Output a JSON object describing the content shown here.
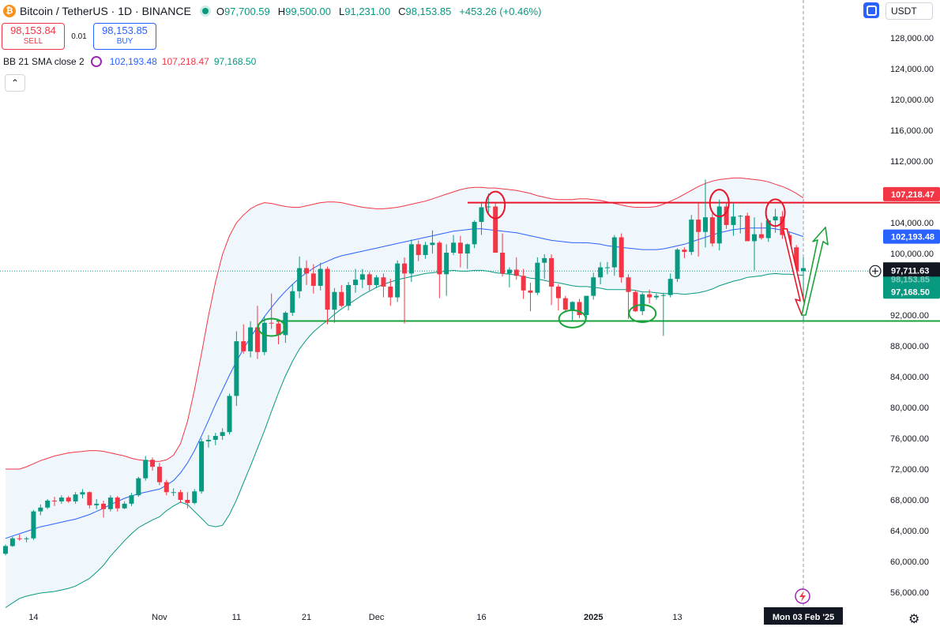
{
  "header": {
    "symbol": "Bitcoin / TetherUS · 1D · BINANCE",
    "open_label": "O",
    "open": "97,700.59",
    "high_label": "H",
    "high": "99,500.00",
    "low_label": "L",
    "low": "91,231.00",
    "close_label": "C",
    "close": "98,153.85",
    "change": "+453.26 (+0.46%)",
    "coin_glyph": "₿"
  },
  "trade": {
    "sell_price": "98,153.84",
    "sell_label": "SELL",
    "spread": "0.01",
    "buy_price": "98,153.85",
    "buy_label": "BUY"
  },
  "indicator": {
    "name": "BB 21 SMA close 2",
    "basis": "102,193.48",
    "upper": "107,218.47",
    "lower": "97,168.50"
  },
  "toolbar": {
    "currency": "USDT",
    "collapse_glyph": "⌃",
    "settings_glyph": "⚙"
  },
  "colors": {
    "up": "#089981",
    "down": "#f23645",
    "basis": "#2962ff",
    "upper": "#f23645",
    "lower": "#089981",
    "fill": "#eaf3fb",
    "support": "#1aa33a",
    "resistance": "#e8162a"
  },
  "chart_data": {
    "type": "candlestick",
    "symbol": "Bitcoin / TetherUS",
    "interval": "1D",
    "ylim": [
      54000,
      131000
    ],
    "yticks": [
      128000,
      124000,
      120000,
      116000,
      112000,
      108000,
      104000,
      100000,
      92000,
      88000,
      84000,
      80000,
      76000,
      72000,
      68000,
      64000,
      60000,
      56000
    ],
    "ytick_labels": [
      "128,000.00",
      "124,000.00",
      "120,000.00",
      "116,000.00",
      "112,000.00",
      "108,000.00",
      "104,000.00",
      "100,000.00",
      "92,000.00",
      "88,000.00",
      "84,000.00",
      "80,000.00",
      "76,000.00",
      "72,000.00",
      "68,000.00",
      "64,000.00",
      "60,000.00",
      "56,000.00"
    ],
    "xtick_labels": [
      {
        "i": 4,
        "label": "14"
      },
      {
        "i": 22,
        "label": "Nov"
      },
      {
        "i": 33,
        "label": "11"
      },
      {
        "i": 43,
        "label": "21"
      },
      {
        "i": 53,
        "label": "Dec"
      },
      {
        "i": 68,
        "label": "16"
      },
      {
        "i": 84,
        "label": "2025"
      },
      {
        "i": 96,
        "label": "13"
      }
    ],
    "price_labels": {
      "upper": "107,218.47",
      "basis": "102,193.48",
      "last": "97,711.63",
      "hidden": "98,153.85",
      "lower": "97,168.50",
      "date": "Mon 03 Feb '25"
    },
    "support": 91231,
    "resistance": 106600,
    "last_price": 97711.63,
    "bollinger_bands": {
      "period": 21,
      "stddev": 2,
      "basis": [
        63000,
        63300,
        63600,
        63900,
        64200,
        64500,
        64700,
        64900,
        65100,
        65300,
        65500,
        65800,
        66100,
        66500,
        66900,
        67400,
        67800,
        68200,
        68500,
        68800,
        69000,
        69200,
        69400,
        69900,
        70500,
        71500,
        72800,
        74400,
        76300,
        78300,
        80400,
        82300,
        84200,
        86000,
        87600,
        89100,
        90500,
        91800,
        93000,
        94100,
        95100,
        96000,
        96800,
        97500,
        98100,
        98600,
        99000,
        99400,
        99700,
        99900,
        100100,
        100300,
        100500,
        100700,
        100900,
        101100,
        101300,
        101500,
        101700,
        101900,
        102100,
        102300,
        102500,
        102700,
        102900,
        103000,
        103100,
        103200,
        103200,
        103100,
        103000,
        102900,
        102800,
        102700,
        102500,
        102300,
        102100,
        101900,
        101700,
        101600,
        101500,
        101400,
        101400,
        101400,
        101300,
        101200,
        101000,
        100900,
        100800,
        100700,
        100600,
        100500,
        100500,
        100500,
        100600,
        100800,
        101000,
        101200,
        101500,
        101800,
        102100,
        102400,
        102700,
        102900,
        103100,
        103200,
        103300,
        103300,
        103300,
        103300,
        103200,
        103000,
        102800,
        102500,
        102193
      ],
      "upper": [
        72000,
        72000,
        72000,
        72300,
        72700,
        73100,
        73400,
        73700,
        73900,
        74100,
        74200,
        74300,
        74400,
        74400,
        74300,
        74100,
        73900,
        73700,
        73400,
        73200,
        73100,
        73000,
        73000,
        73200,
        73800,
        75300,
        78200,
        82300,
        87000,
        91900,
        96300,
        99900,
        102300,
        104000,
        105000,
        105800,
        106300,
        106600,
        106500,
        106300,
        106100,
        106000,
        106000,
        106200,
        106400,
        106600,
        106700,
        106700,
        106600,
        106400,
        106200,
        106000,
        105900,
        105800,
        105800,
        105900,
        106000,
        106200,
        106400,
        106600,
        106800,
        107100,
        107400,
        107700,
        108000,
        108300,
        108500,
        108600,
        108600,
        108500,
        108500,
        108400,
        108300,
        108200,
        108000,
        107800,
        107500,
        107300,
        107100,
        107000,
        107000,
        107000,
        107100,
        107100,
        107000,
        106900,
        106700,
        106500,
        106300,
        106100,
        106000,
        106000,
        106000,
        106100,
        106400,
        106800,
        107200,
        107700,
        108200,
        108700,
        109100,
        109400,
        109600,
        109700,
        109800,
        109800,
        109700,
        109600,
        109500,
        109300,
        109000,
        108700,
        108300,
        107800,
        107218
      ],
      "lower": [
        54000,
        54600,
        55200,
        55500,
        55700,
        55900,
        56000,
        56100,
        56300,
        56500,
        56800,
        57300,
        57800,
        58600,
        59500,
        60700,
        61700,
        62700,
        63600,
        64400,
        64900,
        65400,
        65800,
        66600,
        67200,
        67700,
        67400,
        66500,
        65600,
        64700,
        64500,
        64700,
        66100,
        68000,
        70200,
        72400,
        74700,
        77000,
        79500,
        81900,
        84100,
        86000,
        87600,
        88800,
        89800,
        90600,
        91300,
        92100,
        92800,
        93400,
        94000,
        94600,
        95100,
        95600,
        96000,
        96300,
        96600,
        96800,
        97000,
        97200,
        97400,
        97500,
        97600,
        97700,
        97800,
        97700,
        97700,
        97800,
        97800,
        97700,
        97500,
        97400,
        97300,
        97200,
        97000,
        96800,
        96700,
        96500,
        96300,
        96200,
        96000,
        95800,
        95700,
        95700,
        95600,
        95500,
        95300,
        95300,
        95300,
        95300,
        95200,
        95000,
        95000,
        94900,
        94800,
        94800,
        94800,
        94700,
        94800,
        94900,
        95100,
        95400,
        95800,
        96100,
        96400,
        96600,
        96900,
        97000,
        97100,
        97300,
        97400,
        97300,
        97300,
        97200,
        97168
      ]
    },
    "candles_ohlc": [
      [
        61000,
        62200,
        60800,
        62000
      ],
      [
        62000,
        63200,
        61900,
        63000
      ],
      [
        63000,
        63500,
        62700,
        62900
      ],
      [
        62900,
        63200,
        62500,
        63000
      ],
      [
        63000,
        66700,
        62800,
        66500
      ],
      [
        66500,
        67400,
        66000,
        67000
      ],
      [
        67000,
        68100,
        66800,
        67900
      ],
      [
        67900,
        68400,
        67200,
        67800
      ],
      [
        67800,
        68600,
        67500,
        68300
      ],
      [
        68300,
        68500,
        67600,
        67800
      ],
      [
        67800,
        69000,
        67500,
        68700
      ],
      [
        68700,
        69400,
        68200,
        69000
      ],
      [
        69000,
        69100,
        66900,
        67300
      ],
      [
        67300,
        68100,
        66800,
        67500
      ],
      [
        67500,
        67900,
        65700,
        66800
      ],
      [
        66800,
        68600,
        66500,
        68300
      ],
      [
        68300,
        68500,
        66500,
        66900
      ],
      [
        66900,
        67800,
        66800,
        67500
      ],
      [
        67500,
        68900,
        67200,
        68600
      ],
      [
        68600,
        71000,
        68400,
        70800
      ],
      [
        70800,
        73700,
        70500,
        73200
      ],
      [
        73200,
        73500,
        71800,
        72300
      ],
      [
        72300,
        72800,
        69900,
        70300
      ],
      [
        70300,
        70600,
        68600,
        69000
      ],
      [
        69000,
        69500,
        68500,
        69000
      ],
      [
        69000,
        69300,
        67600,
        68000
      ],
      [
        68000,
        69000,
        66900,
        67600
      ],
      [
        67600,
        69400,
        67400,
        69100
      ],
      [
        69100,
        76000,
        68800,
        75600
      ],
      [
        75600,
        76400,
        74800,
        75800
      ],
      [
        75800,
        76700,
        75100,
        76300
      ],
      [
        76300,
        77300,
        75800,
        76800
      ],
      [
        76800,
        81800,
        76500,
        81500
      ],
      [
        81500,
        89900,
        80200,
        88600
      ],
      [
        88600,
        90800,
        87000,
        87300
      ],
      [
        87300,
        91200,
        86500,
        90400
      ],
      [
        90400,
        93200,
        86300,
        87200
      ],
      [
        87200,
        91800,
        86800,
        91000
      ],
      [
        91000,
        94800,
        90200,
        90900
      ],
      [
        90900,
        91200,
        88200,
        89400
      ],
      [
        89400,
        92500,
        88400,
        92300
      ],
      [
        92300,
        96000,
        91900,
        95100
      ],
      [
        95100,
        99600,
        94200,
        98100
      ],
      [
        98100,
        99100,
        95900,
        97400
      ],
      [
        97400,
        98600,
        94800,
        95800
      ],
      [
        95800,
        98800,
        95200,
        98000
      ],
      [
        98000,
        98300,
        90800,
        92700
      ],
      [
        92700,
        95500,
        91000,
        95000
      ],
      [
        95000,
        95900,
        93000,
        93200
      ],
      [
        93200,
        96300,
        92600,
        95900
      ],
      [
        95900,
        98000,
        94900,
        96600
      ],
      [
        96600,
        98000,
        95500,
        97300
      ],
      [
        97300,
        97600,
        95200,
        95900
      ],
      [
        95900,
        97200,
        95500,
        96900
      ],
      [
        96900,
        97400,
        94300,
        95700
      ],
      [
        95700,
        96700,
        93200,
        94300
      ],
      [
        94300,
        99100,
        93700,
        98700
      ],
      [
        98700,
        99500,
        90900,
        97400
      ],
      [
        97400,
        101800,
        96300,
        101200
      ],
      [
        101200,
        101700,
        99000,
        99800
      ],
      [
        99800,
        101500,
        99300,
        101100
      ],
      [
        101100,
        103000,
        100000,
        101400
      ],
      [
        101400,
        101600,
        94200,
        97300
      ],
      [
        97300,
        101200,
        94500,
        100100
      ],
      [
        100100,
        102400,
        99800,
        101400
      ],
      [
        101400,
        102300,
        98200,
        100000
      ],
      [
        100000,
        101300,
        98000,
        101200
      ],
      [
        101200,
        104300,
        100700,
        104100
      ],
      [
        104100,
        106500,
        102400,
        106000
      ],
      [
        106000,
        107800,
        105000,
        106100
      ],
      [
        106100,
        106500,
        100700,
        100100
      ],
      [
        100100,
        102600,
        97000,
        97400
      ],
      [
        97400,
        98200,
        95600,
        97900
      ],
      [
        97900,
        99500,
        96600,
        97100
      ],
      [
        97100,
        98000,
        94100,
        95200
      ],
      [
        95200,
        96200,
        92500,
        94900
      ],
      [
        94900,
        99500,
        94600,
        98800
      ],
      [
        98800,
        99900,
        96700,
        99400
      ],
      [
        99400,
        99900,
        93300,
        95700
      ],
      [
        95700,
        96000,
        92600,
        94200
      ],
      [
        94200,
        94500,
        92500,
        92700
      ],
      [
        92700,
        93800,
        91300,
        93700
      ],
      [
        93700,
        94100,
        91600,
        92000
      ],
      [
        92000,
        94500,
        91500,
        94500
      ],
      [
        94500,
        97500,
        94000,
        96900
      ],
      [
        96900,
        98900,
        96000,
        98200
      ],
      [
        98200,
        98900,
        97300,
        98200
      ],
      [
        98200,
        102400,
        97100,
        102100
      ],
      [
        102100,
        102600,
        96200,
        96900
      ],
      [
        96900,
        97300,
        91500,
        95000
      ],
      [
        95000,
        95200,
        92400,
        92500
      ],
      [
        92500,
        94900,
        92000,
        94700
      ],
      [
        94700,
        95300,
        93500,
        94300
      ],
      [
        94300,
        94800,
        94000,
        94500
      ],
      [
        94500,
        94900,
        89300,
        94600
      ],
      [
        94600,
        97400,
        94300,
        96700
      ],
      [
        96700,
        100700,
        96300,
        100500
      ],
      [
        100500,
        100800,
        99400,
        100200
      ],
      [
        100200,
        105000,
        99800,
        104400
      ],
      [
        104400,
        106500,
        99600,
        102800
      ],
      [
        102800,
        109600,
        100800,
        104700
      ],
      [
        104700,
        105200,
        100900,
        101300
      ],
      [
        101300,
        107000,
        100400,
        106100
      ],
      [
        106100,
        106700,
        103200,
        103700
      ],
      [
        103700,
        106500,
        102300,
        104800
      ],
      [
        104800,
        105000,
        102600,
        104900
      ],
      [
        104900,
        105300,
        101800,
        101600
      ],
      [
        101600,
        104700,
        97800,
        102500
      ],
      [
        102500,
        104000,
        101800,
        102000
      ],
      [
        102000,
        104500,
        101500,
        104300
      ],
      [
        104300,
        105800,
        102700,
        104800
      ],
      [
        104800,
        105500,
        101900,
        102400
      ],
      [
        102400,
        102800,
        99800,
        100800
      ],
      [
        100800,
        101100,
        96000,
        97700
      ],
      [
        97700,
        99500,
        91200,
        98100
      ]
    ],
    "annotations": {
      "red_circles_at": [
        70,
        102,
        110
      ],
      "green_circles_at": [
        38,
        81,
        91
      ],
      "arrow_down_to": 92000,
      "arrow_up_to": 103400
    }
  }
}
